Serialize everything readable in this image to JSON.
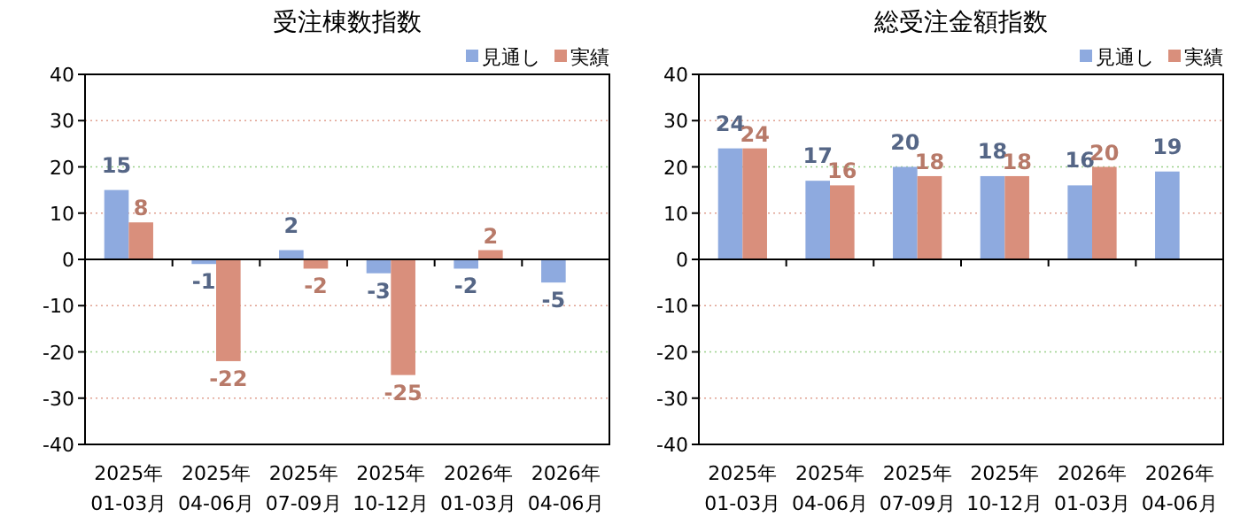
{
  "chart_data": [
    {
      "type": "bar",
      "title": "受注棟数指数",
      "categories": [
        "2025年\n01-03月",
        "2025年\n04-06月",
        "2025年\n07-09月",
        "2025年\n10-12月",
        "2026年\n01-03月",
        "2026年\n04-06月"
      ],
      "series": [
        {
          "name": "見通し",
          "color": "#8eaadf",
          "values": [
            15,
            -1,
            2,
            -3,
            -2,
            -5
          ]
        },
        {
          "name": "実績",
          "color": "#d98f7c",
          "values": [
            8,
            -22,
            -2,
            -25,
            2,
            null
          ]
        }
      ],
      "ylim": [
        -40,
        40
      ],
      "yticks": [
        -40,
        -30,
        -20,
        -10,
        0,
        10,
        20,
        30,
        40
      ],
      "grid": "y",
      "legend": "top right",
      "data_labels": true
    },
    {
      "type": "bar",
      "title": "総受注金額指数",
      "categories": [
        "2025年\n01-03月",
        "2025年\n04-06月",
        "2025年\n07-09月",
        "2025年\n10-12月",
        "2026年\n01-03月",
        "2026年\n04-06月"
      ],
      "series": [
        {
          "name": "見通し",
          "color": "#8eaadf",
          "values": [
            24,
            17,
            20,
            18,
            16,
            19
          ]
        },
        {
          "name": "実績",
          "color": "#d98f7c",
          "values": [
            24,
            16,
            18,
            18,
            20,
            null
          ]
        }
      ],
      "ylim": [
        -40,
        40
      ],
      "yticks": [
        -40,
        -30,
        -20,
        -10,
        0,
        10,
        20,
        30,
        40
      ],
      "grid": "y",
      "legend": "top right",
      "data_labels": true
    }
  ]
}
